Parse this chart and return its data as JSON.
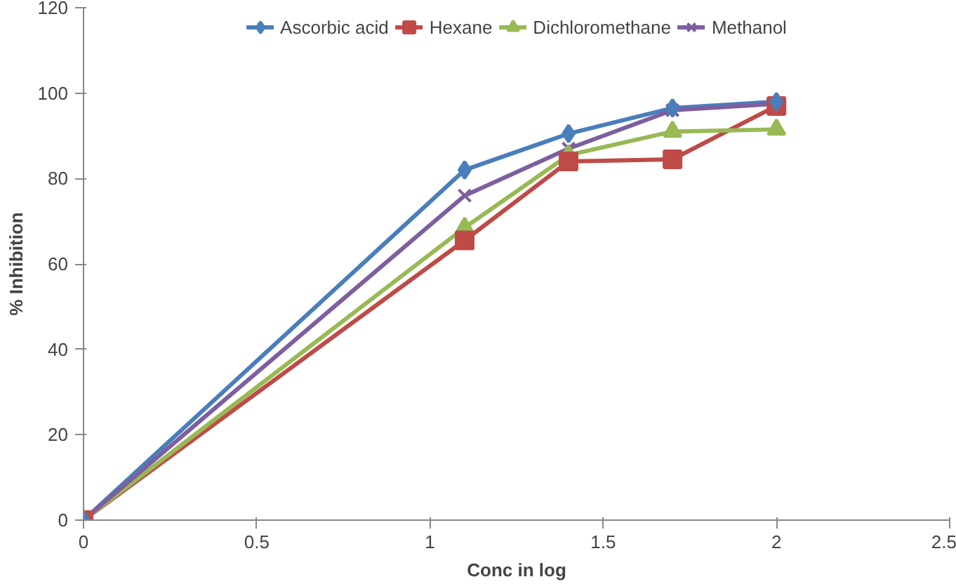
{
  "chart_data": {
    "type": "line",
    "xlabel": "Conc in log",
    "ylabel": "% Inhibition",
    "x": [
      0,
      1.1,
      1.4,
      1.7,
      2
    ],
    "series": [
      {
        "name": "Ascorbic acid",
        "color": "#4a7ebb",
        "marker": "diamond",
        "values": [
          0,
          82,
          90.5,
          96.5,
          98
        ]
      },
      {
        "name": "Hexane",
        "color": "#be4b48",
        "marker": "square",
        "values": [
          0,
          65.5,
          84,
          84.5,
          97
        ]
      },
      {
        "name": "Dichloromethane",
        "color": "#98b954",
        "marker": "triangle",
        "values": [
          0,
          68.5,
          85.5,
          91,
          91.5
        ]
      },
      {
        "name": "Methanol",
        "color": "#7d5fa0",
        "marker": "cross",
        "values": [
          0,
          76,
          87,
          96,
          97.5
        ]
      }
    ],
    "xlim": [
      0,
      2.5
    ],
    "ylim": [
      0,
      120
    ],
    "xticks": [
      0,
      0.5,
      1,
      1.5,
      2,
      2.5
    ],
    "yticks": [
      0,
      20,
      40,
      60,
      80,
      100,
      120
    ],
    "grid": false,
    "legend": "top",
    "line_style": "solid"
  }
}
